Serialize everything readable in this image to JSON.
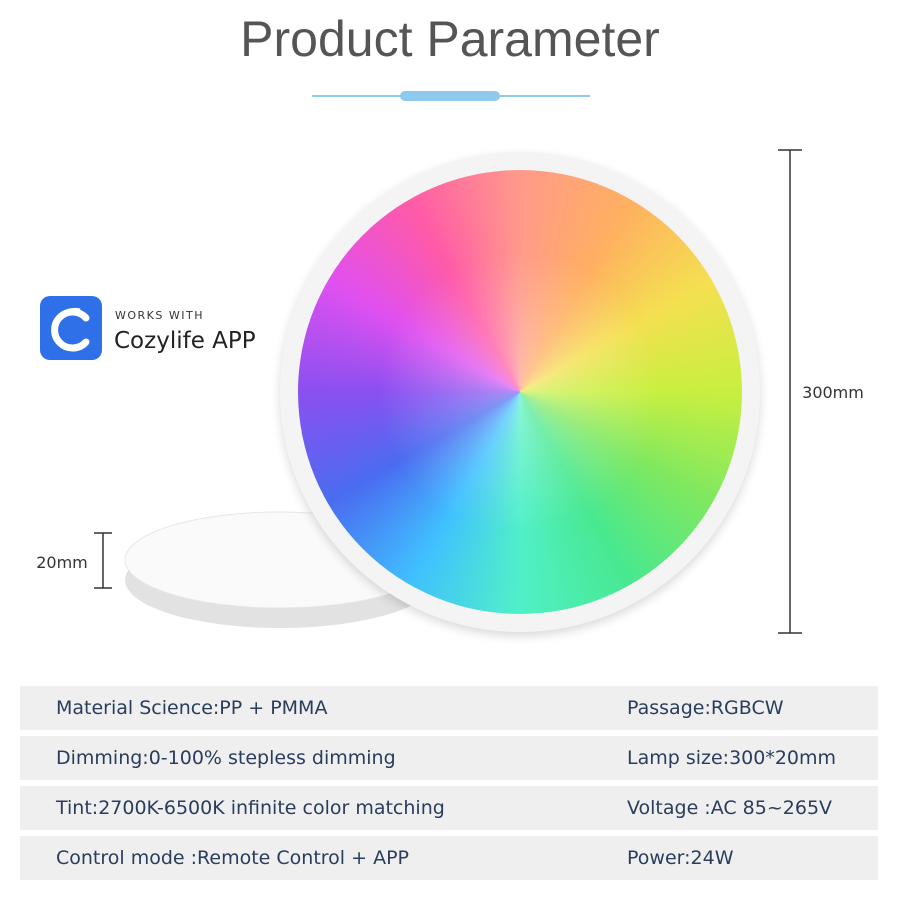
{
  "header": {
    "title": "Product Parameter"
  },
  "badge": {
    "caption": "WORKS WITH",
    "app": "Cozylife APP"
  },
  "dimensions": {
    "diameter": "300mm",
    "thickness": "20mm"
  },
  "table": {
    "rows": [
      [
        "Material Science:PP + PMMA",
        "Passage:RGBCW"
      ],
      [
        "Dimming:0-100% stepless dimming",
        "Lamp size:300*20mm"
      ],
      [
        "Tint:2700K-6500K infinite color matching",
        "Voltage :AC 85~265V"
      ],
      [
        "Control mode :Remote Control + APP",
        "Power:24W"
      ]
    ]
  }
}
